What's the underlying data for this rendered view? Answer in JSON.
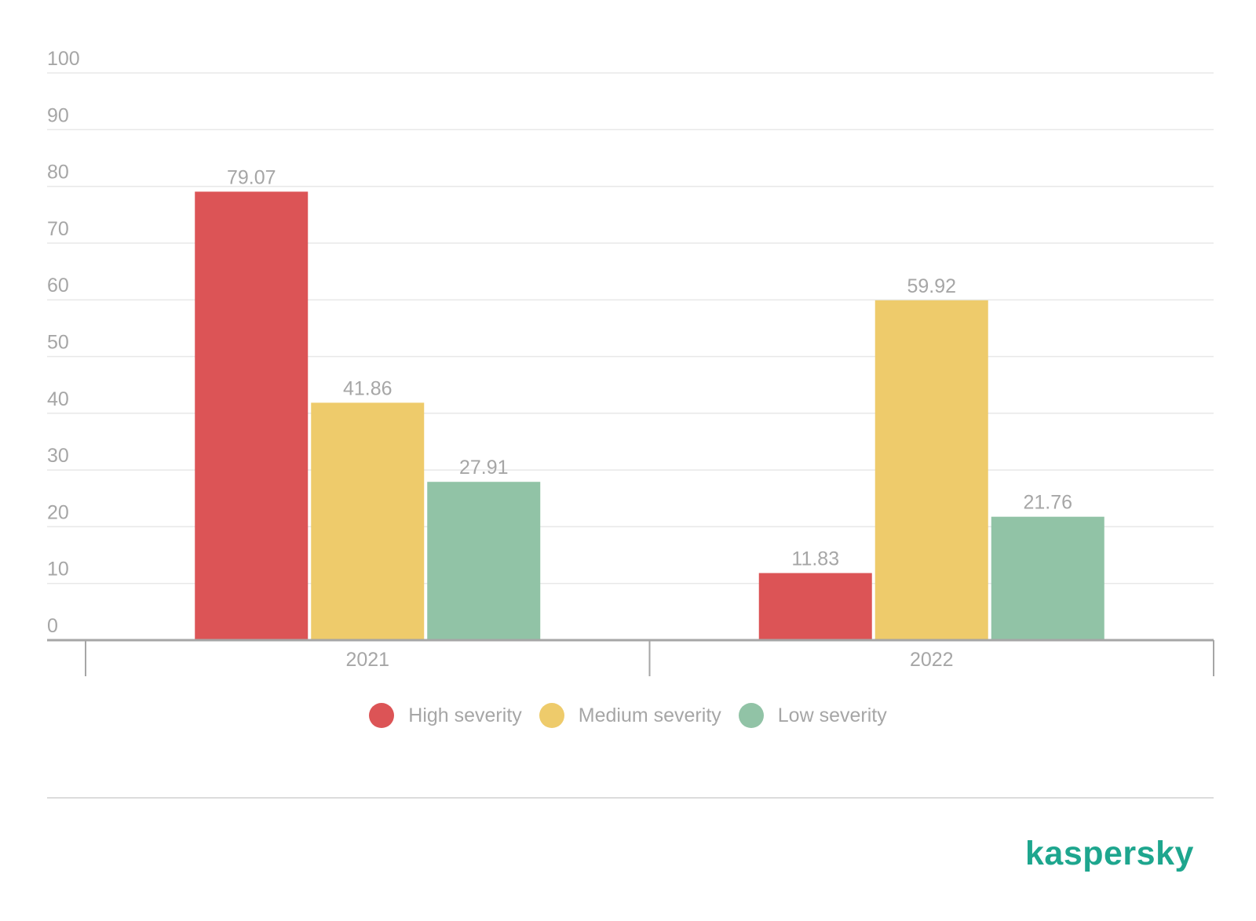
{
  "chart_data": {
    "type": "bar",
    "categories": [
      "2021",
      "2022"
    ],
    "series": [
      {
        "name": "High severity",
        "values": [
          79.07,
          11.83
        ],
        "color": "#dc5456"
      },
      {
        "name": "Medium severity",
        "values": [
          41.86,
          59.92
        ],
        "color": "#eecb6b"
      },
      {
        "name": "Low severity",
        "values": [
          27.91,
          21.76
        ],
        "color": "#91c3a6"
      }
    ],
    "data_labels": [
      [
        "79.07",
        "11.83"
      ],
      [
        "41.86",
        "59.92"
      ],
      [
        "27.91",
        "21.76"
      ]
    ],
    "yticks": [
      "0",
      "10",
      "20",
      "30",
      "40",
      "50",
      "60",
      "70",
      "80",
      "90",
      "100"
    ],
    "ylim": [
      0,
      100
    ],
    "grid": true,
    "legend_position": "bottom-center",
    "title": "",
    "xlabel": "",
    "ylabel": ""
  },
  "brand": {
    "logo_text": "kaspersky",
    "color": "#1ea68e"
  },
  "colors": {
    "axis_text": "#a6a6a6",
    "gridline": "#e8e8e8",
    "axis_line": "#a6a6a6"
  }
}
